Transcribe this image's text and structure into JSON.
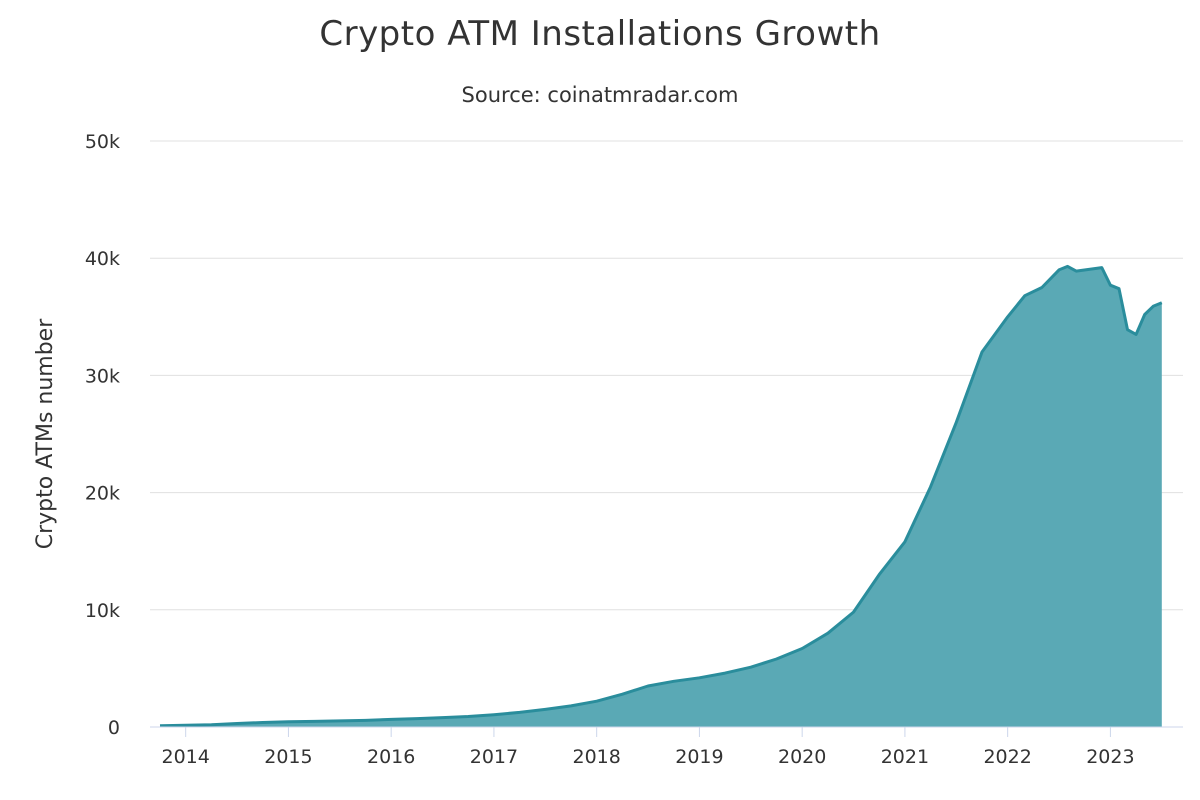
{
  "chart_data": {
    "type": "area",
    "title": "Crypto ATM Installations Growth",
    "subtitle": "Source: coinatmradar.com",
    "ylabel": "Crypto ATMs number",
    "xlabel": "",
    "ylim": [
      0,
      50000
    ],
    "xlim": [
      2013.75,
      2023.58
    ],
    "yticks": [
      0,
      10000,
      20000,
      30000,
      40000,
      50000
    ],
    "ytick_labels": [
      "0",
      "10k",
      "20k",
      "30k",
      "40k",
      "50k"
    ],
    "xticks": [
      2014,
      2015,
      2016,
      2017,
      2018,
      2019,
      2020,
      2021,
      2022,
      2023
    ],
    "xtick_labels": [
      "2014",
      "2015",
      "2016",
      "2017",
      "2018",
      "2019",
      "2020",
      "2021",
      "2022",
      "2023"
    ],
    "grid": true,
    "colors": {
      "fill": "#5aa9b5",
      "line": "#2a8d9c",
      "grid": "#e0e0e0",
      "axis": "#ccd6eb"
    },
    "series": [
      {
        "x": [
          "2013-10",
          "2014-01",
          "2014-04",
          "2014-07",
          "2014-10",
          "2015-01",
          "2015-04",
          "2015-07",
          "2015-10",
          "2016-01",
          "2016-04",
          "2016-07",
          "2016-10",
          "2017-01",
          "2017-04",
          "2017-07",
          "2017-10",
          "2018-01",
          "2018-04",
          "2018-07",
          "2018-10",
          "2019-01",
          "2019-04",
          "2019-07",
          "2019-10",
          "2020-01",
          "2020-04",
          "2020-07",
          "2020-10",
          "2021-01",
          "2021-04",
          "2021-07",
          "2021-10",
          "2022-01",
          "2022-03",
          "2022-05",
          "2022-07",
          "2022-08",
          "2022-09",
          "2022-12",
          "2023-01",
          "2023-02",
          "2023-03",
          "2023-04",
          "2023-05",
          "2023-06",
          "2023-07"
        ],
        "values": [
          100,
          150,
          200,
          300,
          380,
          450,
          480,
          520,
          560,
          650,
          720,
          800,
          900,
          1050,
          1250,
          1500,
          1800,
          2200,
          2800,
          3500,
          3900,
          4200,
          4600,
          5100,
          5800,
          6700,
          8000,
          9800,
          13000,
          15800,
          20500,
          26000,
          32000,
          35000,
          36800,
          37500,
          39000,
          39300,
          38900,
          39200,
          37700,
          37400,
          33900,
          33500,
          35200,
          35900,
          36200
        ]
      }
    ]
  }
}
